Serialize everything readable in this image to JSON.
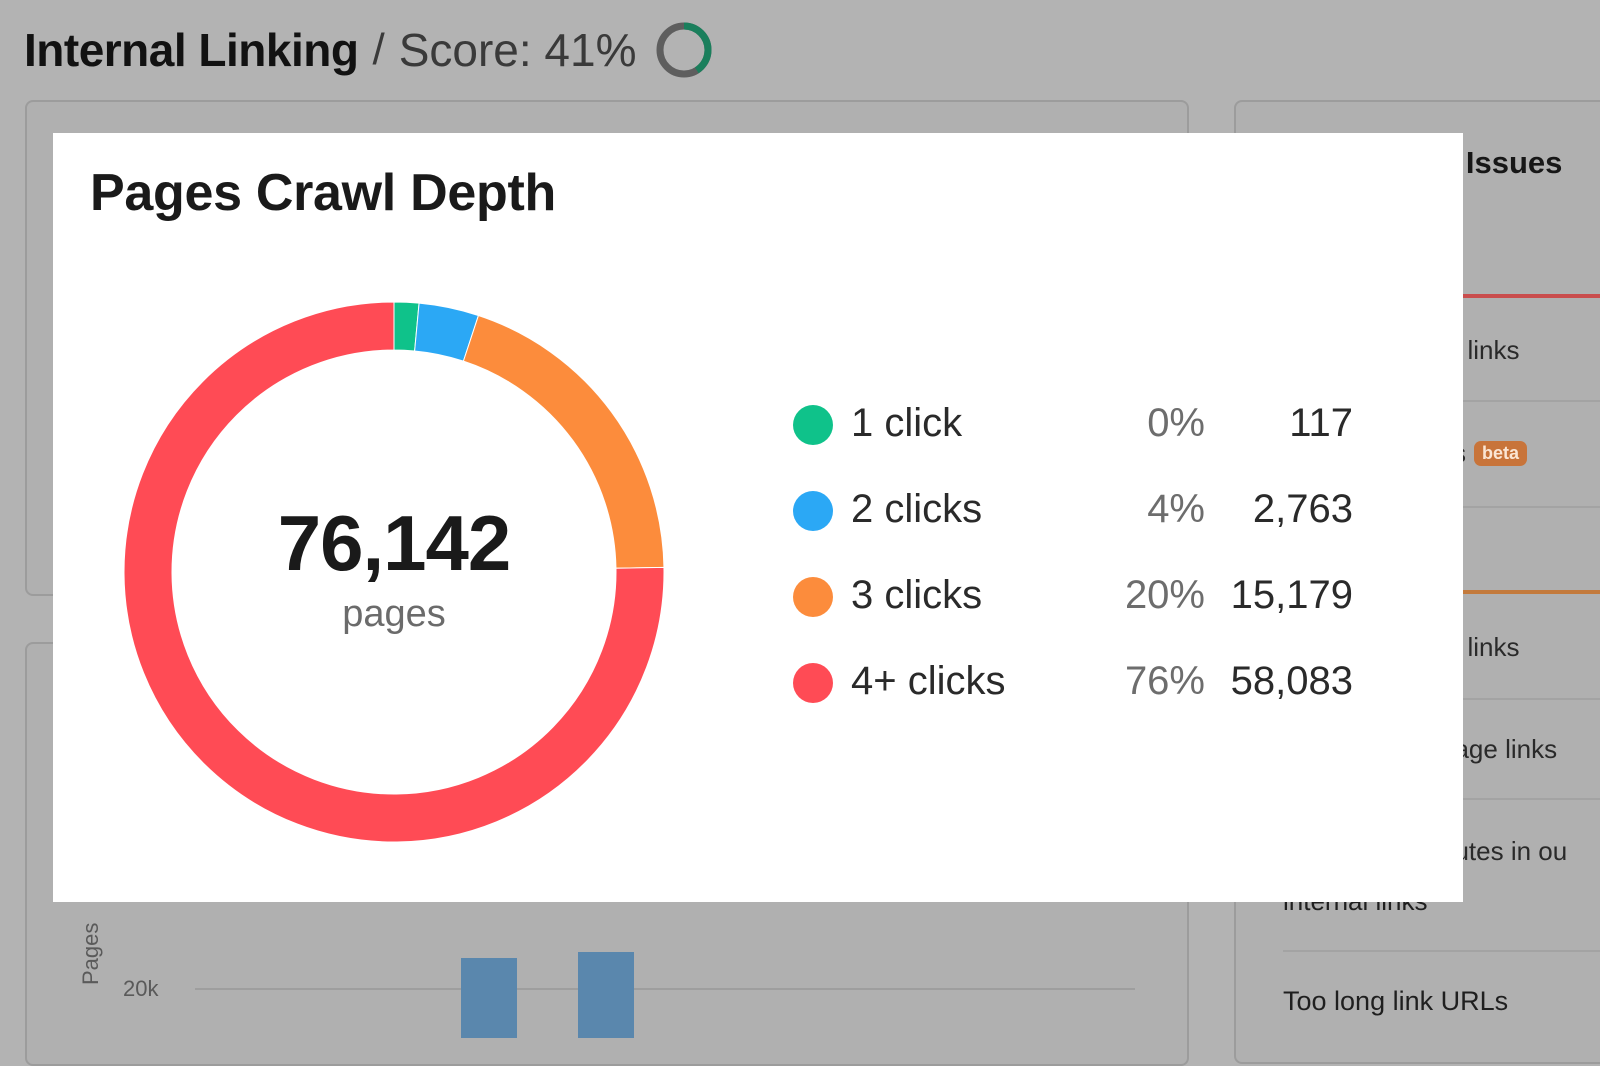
{
  "header": {
    "title": "Internal Linking",
    "separator": "/",
    "score_text": "Score: 41%",
    "score_value": 0.41
  },
  "issues_panel": {
    "title_fragment": "k Issues",
    "rows": [
      {
        "text": "al links"
      },
      {
        "text": "ks",
        "badge": "beta"
      },
      {
        "text": "al links"
      },
      {
        "text": "page links"
      },
      {
        "text": "butes in ou"
      }
    ],
    "cut_text": "internal links",
    "last_row": "Too long link URLs"
  },
  "background_chart": {
    "axis_label": "Pages",
    "tick": "20k"
  },
  "popup": {
    "title": "Pages Crawl Depth",
    "center_value": "76,142",
    "center_label": "pages"
  },
  "chart_data": {
    "type": "pie",
    "title": "Pages Crawl Depth",
    "total": 76142,
    "series": [
      {
        "name": "1 click",
        "percent_label": "0%",
        "value_label": "117",
        "value": 117,
        "color": "#0fc28a"
      },
      {
        "name": "2 clicks",
        "percent_label": "4%",
        "value_label": "2,763",
        "value": 2763,
        "color": "#2ba8f5"
      },
      {
        "name": "3 clicks",
        "percent_label": "20%",
        "value_label": "15,179",
        "value": 15179,
        "color": "#fc8c3c"
      },
      {
        "name": "4+ clicks",
        "percent_label": "76%",
        "value_label": "58,083",
        "value": 58083,
        "color": "#ff4b55"
      }
    ]
  }
}
